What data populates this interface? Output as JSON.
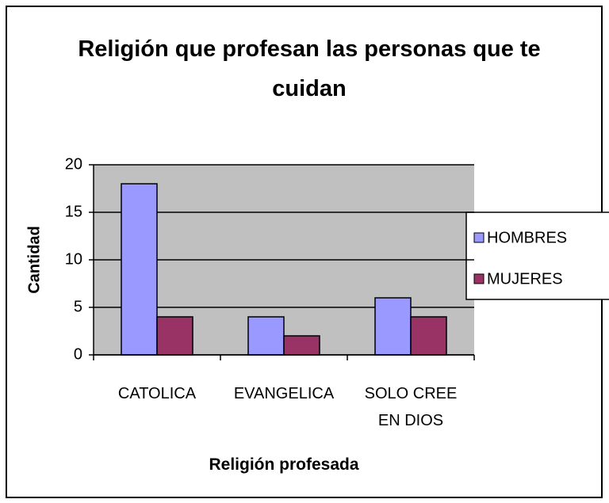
{
  "chart_data": {
    "type": "bar",
    "title": "Religión que profesan las personas que te cuidan",
    "x_label": "Religión profesada",
    "y_label": "Cantidad",
    "categories": [
      "CATOLICA",
      "EVANGELICA",
      "SOLO CREE EN DIOS"
    ],
    "series": [
      {
        "name": "HOMBRES",
        "color": "#9999ff",
        "values": [
          18,
          4,
          6
        ]
      },
      {
        "name": "MUJERES",
        "color": "#993366",
        "values": [
          4,
          2,
          4
        ]
      }
    ],
    "ylim": [
      0,
      20
    ],
    "yticks": [
      0,
      5,
      10,
      15,
      20
    ],
    "grid": true,
    "legend": "right"
  }
}
